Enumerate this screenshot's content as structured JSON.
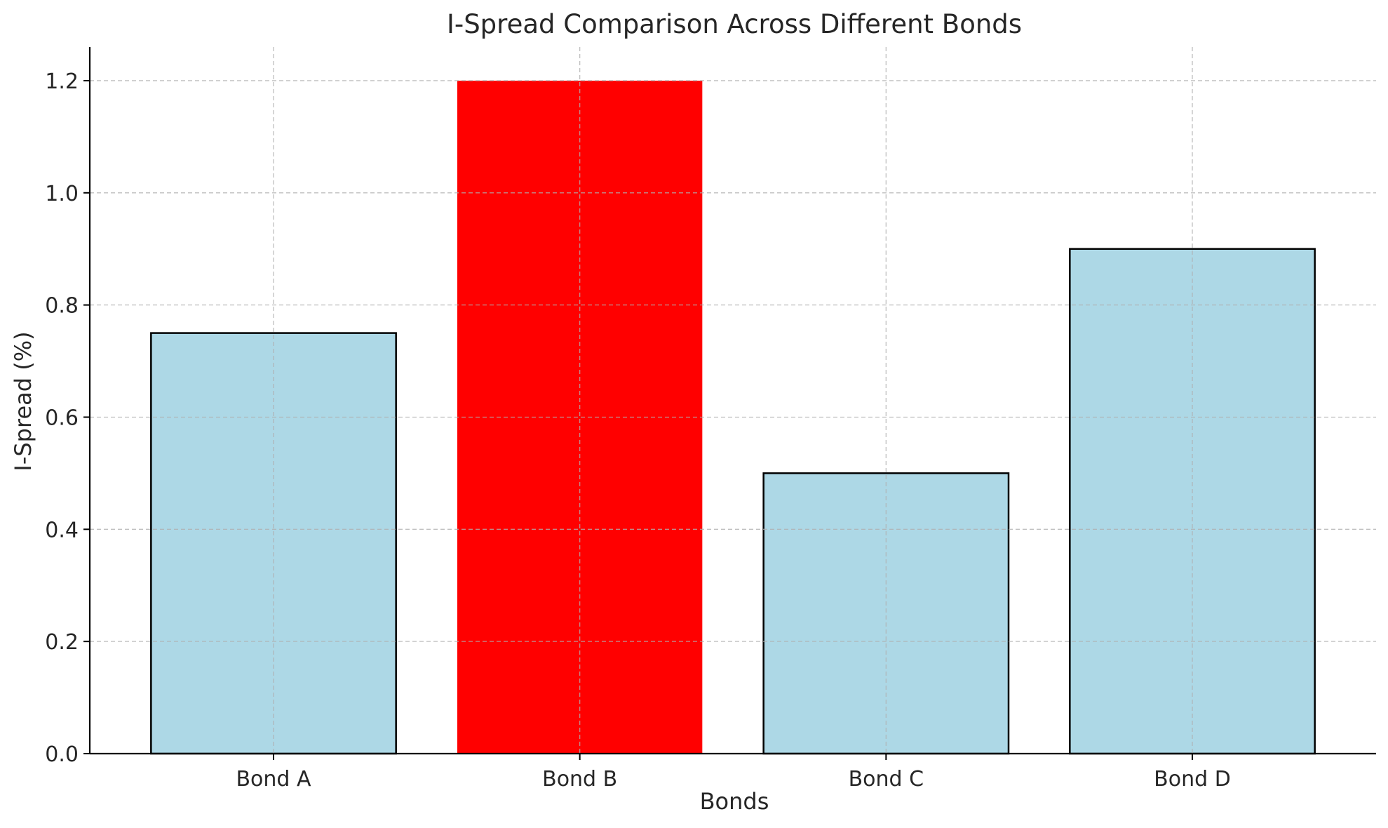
{
  "chart_data": {
    "type": "bar",
    "title": "I-Spread Comparison Across Different Bonds",
    "xlabel": "Bonds",
    "ylabel": "I-Spread (%)",
    "categories": [
      "Bond A",
      "Bond B",
      "Bond C",
      "Bond D"
    ],
    "values": [
      0.75,
      1.2,
      0.5,
      0.9
    ],
    "ylim": [
      0,
      1.26
    ],
    "yticks": [
      "0.0",
      "0.2",
      "0.4",
      "0.6",
      "0.8",
      "1.0",
      "1.2"
    ],
    "grid": true,
    "colors": {
      "default_bar": "#add8e6",
      "highlight_bar": "#ff0000",
      "bar_edge": "#000000"
    },
    "highlight_category": "Bond B"
  }
}
